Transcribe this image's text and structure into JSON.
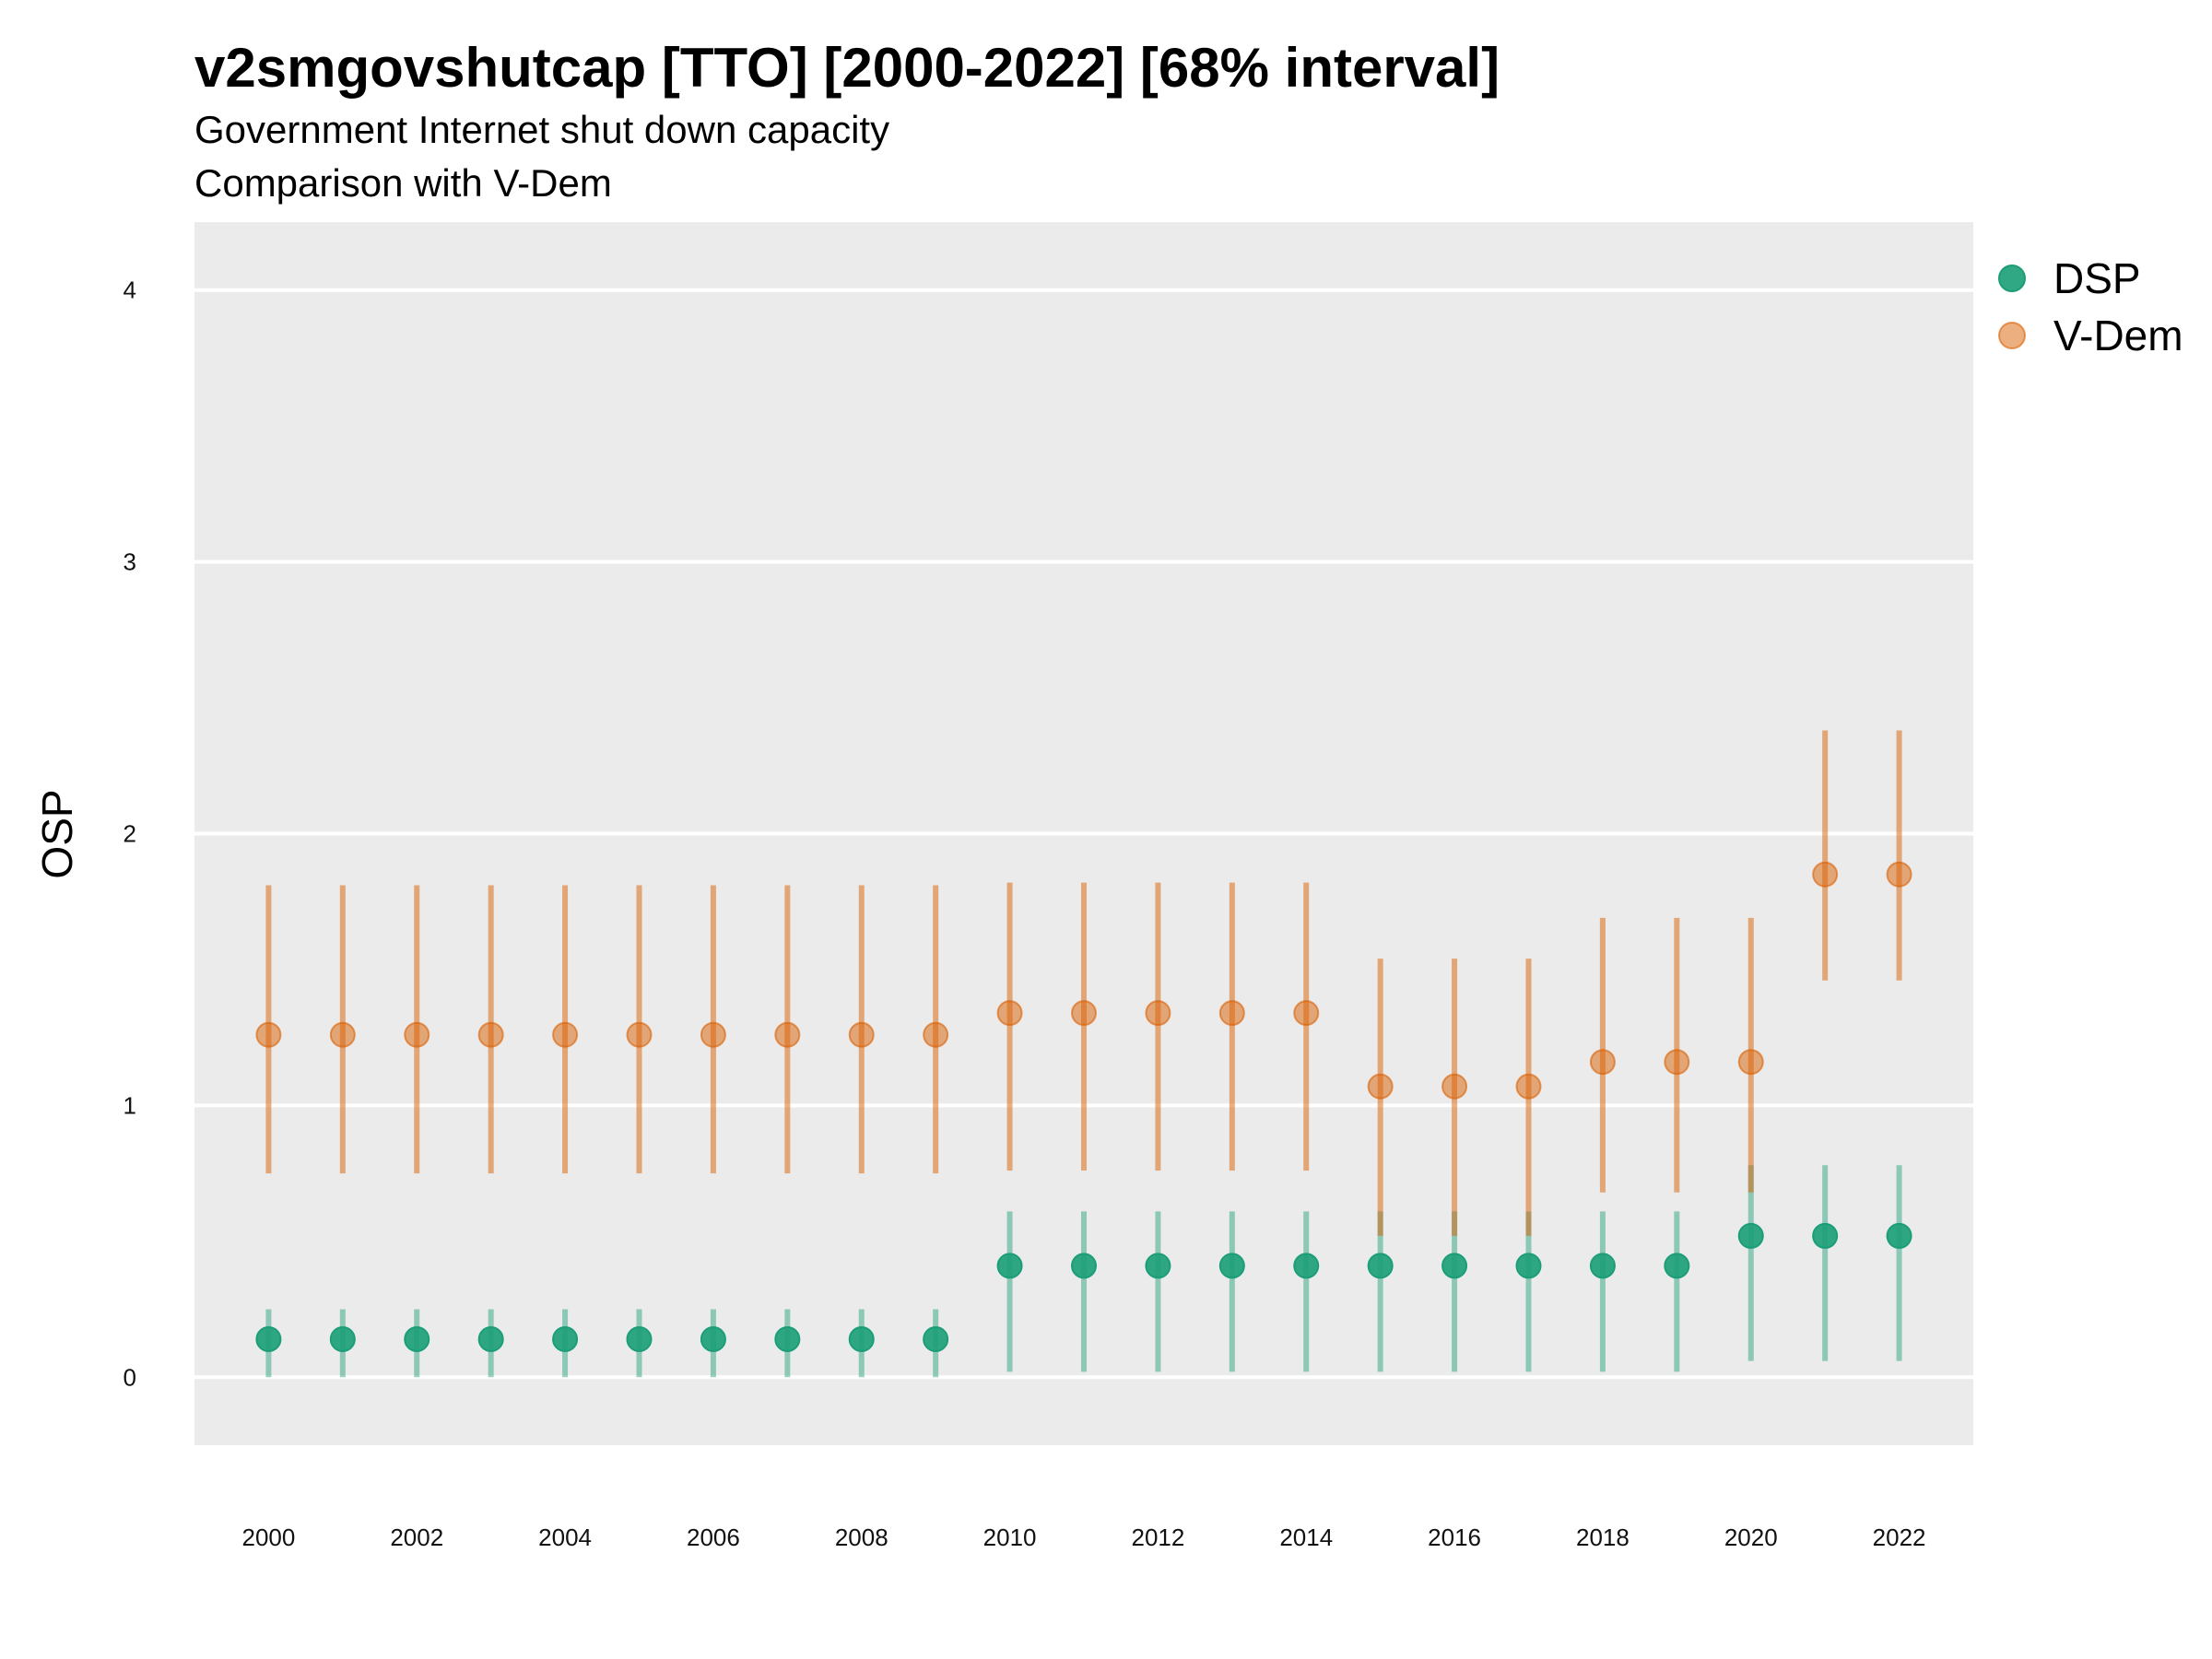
{
  "chart_data": {
    "type": "scatter",
    "title": "v2smgovshutcap [TTO] [2000-2022] [68% interval]",
    "subtitle": "Government Internet shut down capacity",
    "subtitle2": "Comparison with V-Dem",
    "xlabel": "",
    "ylabel": "OSP",
    "xlim": [
      1999,
      2023
    ],
    "ylim": [
      -0.25,
      4.25
    ],
    "x_ticks": [
      "2000",
      "2002",
      "2004",
      "2006",
      "2008",
      "2010",
      "2012",
      "2014",
      "2016",
      "2018",
      "2020",
      "2022"
    ],
    "y_ticks": [
      "0",
      "1",
      "2",
      "3",
      "4"
    ],
    "grid": true,
    "legend_position": "right",
    "x": [
      2000,
      2001,
      2002,
      2003,
      2004,
      2005,
      2006,
      2007,
      2008,
      2009,
      2010,
      2011,
      2012,
      2013,
      2014,
      2015,
      2016,
      2017,
      2018,
      2019,
      2020,
      2021,
      2022
    ],
    "series": [
      {
        "name": "DSP",
        "color": "#1b9e77",
        "values": [
          0.14,
          0.14,
          0.14,
          0.14,
          0.14,
          0.14,
          0.14,
          0.14,
          0.14,
          0.14,
          0.41,
          0.41,
          0.41,
          0.41,
          0.41,
          0.41,
          0.41,
          0.41,
          0.41,
          0.41,
          0.52,
          0.52,
          0.52
        ],
        "lower": [
          0.0,
          0.0,
          0.0,
          0.0,
          0.0,
          0.0,
          0.0,
          0.0,
          0.0,
          0.0,
          0.02,
          0.02,
          0.02,
          0.02,
          0.02,
          0.02,
          0.02,
          0.02,
          0.02,
          0.02,
          0.06,
          0.06,
          0.06
        ],
        "upper": [
          0.25,
          0.25,
          0.25,
          0.25,
          0.25,
          0.25,
          0.25,
          0.25,
          0.25,
          0.25,
          0.61,
          0.61,
          0.61,
          0.61,
          0.61,
          0.61,
          0.61,
          0.61,
          0.61,
          0.61,
          0.78,
          0.78,
          0.78
        ]
      },
      {
        "name": "V-Dem",
        "color": "#d95f02",
        "values": [
          1.26,
          1.26,
          1.26,
          1.26,
          1.26,
          1.26,
          1.26,
          1.26,
          1.26,
          1.26,
          1.34,
          1.34,
          1.34,
          1.34,
          1.34,
          1.07,
          1.07,
          1.07,
          1.16,
          1.16,
          1.16,
          1.85,
          1.85
        ],
        "lower": [
          0.75,
          0.75,
          0.75,
          0.75,
          0.75,
          0.75,
          0.75,
          0.75,
          0.75,
          0.75,
          0.76,
          0.76,
          0.76,
          0.76,
          0.76,
          0.52,
          0.52,
          0.52,
          0.68,
          0.68,
          0.68,
          1.46,
          1.46
        ],
        "upper": [
          1.81,
          1.81,
          1.81,
          1.81,
          1.81,
          1.81,
          1.81,
          1.81,
          1.81,
          1.81,
          1.82,
          1.82,
          1.82,
          1.82,
          1.82,
          1.54,
          1.54,
          1.54,
          1.69,
          1.69,
          1.69,
          2.38,
          2.38
        ]
      }
    ]
  }
}
